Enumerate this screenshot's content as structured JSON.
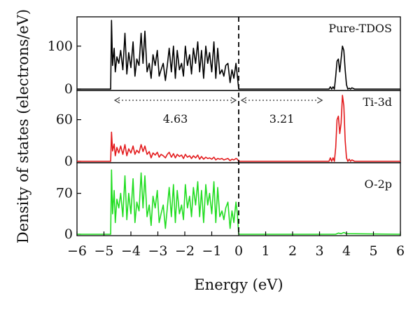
{
  "chart_data": {
    "type": "line",
    "xlabel": "Energy (eV)",
    "ylabel": "Density of states (electrons/eV)",
    "xlim": [
      -6,
      6
    ],
    "xticks": [
      -6,
      -5,
      -4,
      -3,
      -2,
      -1,
      0,
      1,
      2,
      3,
      4,
      5,
      6
    ],
    "fermi_level": 0,
    "annotations": [
      {
        "text": "4.63",
        "from": -4.7,
        "to": 0
      },
      {
        "text": "3.21",
        "from": 0,
        "to": 3.2
      }
    ],
    "panels": [
      {
        "name": "Pure-TDOS",
        "color": "#000000",
        "ylim": [
          0,
          165
        ],
        "yticks": [
          0,
          100
        ],
        "x": [
          -6.0,
          -4.75,
          -4.72,
          -4.68,
          -4.62,
          -4.58,
          -4.52,
          -4.45,
          -4.38,
          -4.3,
          -4.22,
          -4.15,
          -4.08,
          -4.0,
          -3.92,
          -3.85,
          -3.78,
          -3.7,
          -3.62,
          -3.55,
          -3.48,
          -3.4,
          -3.32,
          -3.25,
          -3.18,
          -3.1,
          -3.02,
          -2.95,
          -2.88,
          -2.8,
          -2.72,
          -2.65,
          -2.58,
          -2.5,
          -2.42,
          -2.35,
          -2.28,
          -2.2,
          -2.12,
          -2.05,
          -1.98,
          -1.9,
          -1.82,
          -1.75,
          -1.68,
          -1.6,
          -1.52,
          -1.45,
          -1.38,
          -1.3,
          -1.22,
          -1.15,
          -1.08,
          -1.0,
          -0.92,
          -0.85,
          -0.78,
          -0.7,
          -0.62,
          -0.55,
          -0.48,
          -0.4,
          -0.32,
          -0.25,
          -0.18,
          -0.1,
          -0.05,
          0.0,
          0.1,
          3.35,
          3.4,
          3.45,
          3.5,
          3.55,
          3.6,
          3.65,
          3.7,
          3.75,
          3.8,
          3.85,
          3.9,
          3.95,
          4.0,
          4.05,
          4.1,
          4.15,
          4.2,
          4.3,
          6.0
        ],
        "y": [
          0,
          0,
          160,
          55,
          95,
          40,
          75,
          60,
          90,
          45,
          130,
          35,
          85,
          50,
          110,
          30,
          70,
          55,
          130,
          60,
          135,
          40,
          60,
          25,
          80,
          55,
          90,
          30,
          45,
          60,
          20,
          55,
          95,
          40,
          100,
          25,
          90,
          45,
          60,
          30,
          100,
          55,
          80,
          35,
          95,
          60,
          110,
          40,
          90,
          25,
          100,
          60,
          85,
          40,
          110,
          25,
          95,
          35,
          45,
          30,
          55,
          60,
          15,
          45,
          25,
          60,
          30,
          0,
          0,
          0,
          5,
          0,
          5,
          0,
          30,
          65,
          70,
          40,
          70,
          100,
          90,
          45,
          10,
          0,
          2,
          0,
          3,
          0,
          0
        ],
        "label_pos": "top-right"
      },
      {
        "name": "Ti-3d",
        "color": "#e31a1c",
        "ylim": [
          0,
          100
        ],
        "yticks": [
          0,
          60
        ],
        "x": [
          -6.0,
          -4.75,
          -4.72,
          -4.68,
          -4.62,
          -4.58,
          -4.52,
          -4.45,
          -4.38,
          -4.3,
          -4.22,
          -4.15,
          -4.08,
          -4.0,
          -3.92,
          -3.85,
          -3.78,
          -3.7,
          -3.62,
          -3.55,
          -3.48,
          -3.4,
          -3.32,
          -3.25,
          -3.18,
          -3.1,
          -3.02,
          -2.95,
          -2.88,
          -2.8,
          -2.72,
          -2.65,
          -2.58,
          -2.5,
          -2.42,
          -2.35,
          -2.28,
          -2.2,
          -2.12,
          -2.05,
          -1.98,
          -1.9,
          -1.82,
          -1.75,
          -1.68,
          -1.6,
          -1.52,
          -1.45,
          -1.38,
          -1.3,
          -1.22,
          -1.15,
          -1.08,
          -1.0,
          -0.92,
          -0.85,
          -0.78,
          -0.7,
          -0.62,
          -0.55,
          -0.48,
          -0.4,
          -0.32,
          -0.25,
          -0.18,
          -0.1,
          -0.05,
          0.0,
          0.1,
          3.35,
          3.4,
          3.45,
          3.5,
          3.55,
          3.6,
          3.65,
          3.7,
          3.75,
          3.8,
          3.85,
          3.9,
          3.95,
          4.0,
          4.05,
          4.1,
          4.15,
          4.2,
          4.3,
          6.0
        ],
        "y": [
          0,
          0,
          42,
          15,
          25,
          8,
          20,
          12,
          22,
          10,
          24,
          8,
          18,
          12,
          22,
          10,
          16,
          12,
          24,
          14,
          22,
          10,
          14,
          5,
          12,
          9,
          13,
          6,
          10,
          8,
          5,
          10,
          13,
          6,
          11,
          5,
          10,
          7,
          9,
          4,
          10,
          6,
          8,
          4,
          8,
          5,
          9,
          3,
          7,
          3,
          6,
          4,
          5,
          3,
          6,
          2,
          4,
          3,
          4,
          2,
          3,
          4,
          1,
          3,
          2,
          4,
          3,
          0,
          0,
          0,
          5,
          0,
          5,
          0,
          20,
          60,
          65,
          40,
          55,
          95,
          80,
          30,
          5,
          0,
          3,
          0,
          2,
          0,
          0
        ],
        "label_pos": "top-right"
      },
      {
        "name": "O-2p",
        "color": "#22dd22",
        "ylim": [
          0,
          120
        ],
        "yticks": [
          0,
          70
        ],
        "x": [
          -6.0,
          -4.75,
          -4.72,
          -4.68,
          -4.62,
          -4.58,
          -4.52,
          -4.45,
          -4.38,
          -4.3,
          -4.22,
          -4.15,
          -4.08,
          -4.0,
          -3.92,
          -3.85,
          -3.78,
          -3.7,
          -3.62,
          -3.55,
          -3.48,
          -3.4,
          -3.32,
          -3.25,
          -3.18,
          -3.1,
          -3.02,
          -2.95,
          -2.88,
          -2.8,
          -2.72,
          -2.65,
          -2.58,
          -2.5,
          -2.42,
          -2.35,
          -2.28,
          -2.2,
          -2.12,
          -2.05,
          -1.98,
          -1.9,
          -1.82,
          -1.75,
          -1.68,
          -1.6,
          -1.52,
          -1.45,
          -1.38,
          -1.3,
          -1.22,
          -1.15,
          -1.08,
          -1.0,
          -0.92,
          -0.85,
          -0.78,
          -0.7,
          -0.62,
          -0.55,
          -0.48,
          -0.4,
          -0.32,
          -0.25,
          -0.18,
          -0.1,
          -0.05,
          0.0,
          0.1,
          3.6,
          3.7,
          3.8,
          3.9,
          4.0,
          6.0
        ],
        "y": [
          0,
          0,
          110,
          35,
          75,
          20,
          60,
          45,
          70,
          30,
          100,
          25,
          70,
          35,
          95,
          20,
          55,
          40,
          105,
          45,
          100,
          30,
          50,
          15,
          65,
          45,
          75,
          20,
          35,
          50,
          10,
          45,
          80,
          30,
          85,
          20,
          75,
          35,
          50,
          25,
          85,
          45,
          65,
          30,
          80,
          50,
          90,
          30,
          75,
          20,
          85,
          50,
          70,
          35,
          90,
          20,
          80,
          30,
          40,
          25,
          45,
          55,
          10,
          40,
          20,
          55,
          35,
          0,
          0,
          0,
          2,
          1,
          3,
          1,
          0
        ],
        "label_pos": "right"
      }
    ]
  }
}
